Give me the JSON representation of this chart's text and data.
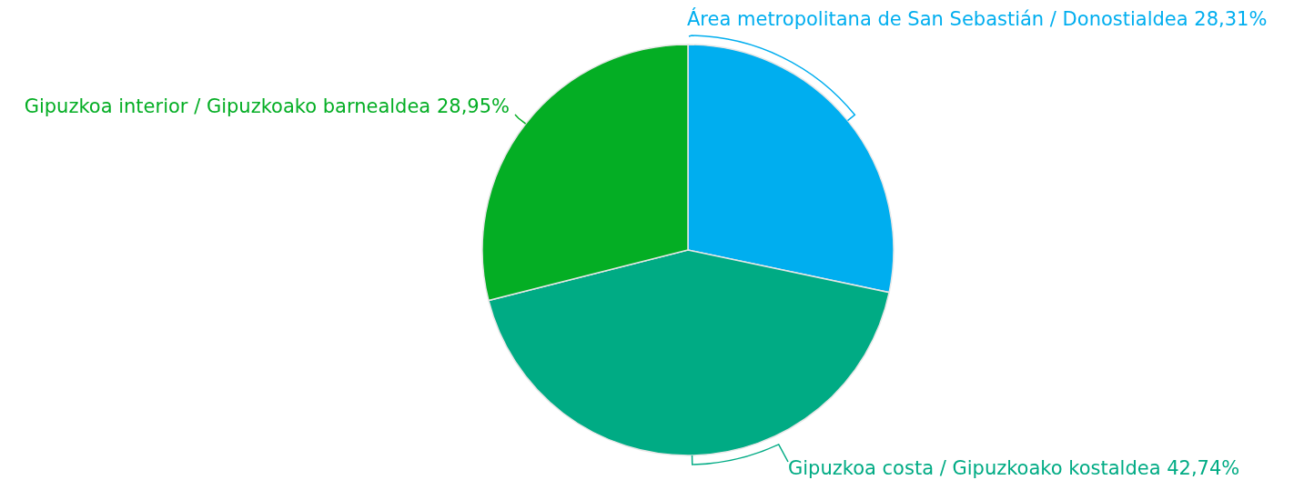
{
  "chart_data": {
    "type": "pie",
    "categories": [
      "Área metropolitana de San Sebastián / Donostialdea",
      "Gipuzkoa costa / Gipuzkoako kostaldea",
      "Gipuzkoa interior / Gipuzkoako barnealdea"
    ],
    "values": [
      28.31,
      42.74,
      28.95
    ],
    "value_labels": [
      "28,31%",
      "42,74%",
      "28,95%"
    ],
    "colors": [
      "#00aeef",
      "#00ab84",
      "#04ae24"
    ]
  }
}
